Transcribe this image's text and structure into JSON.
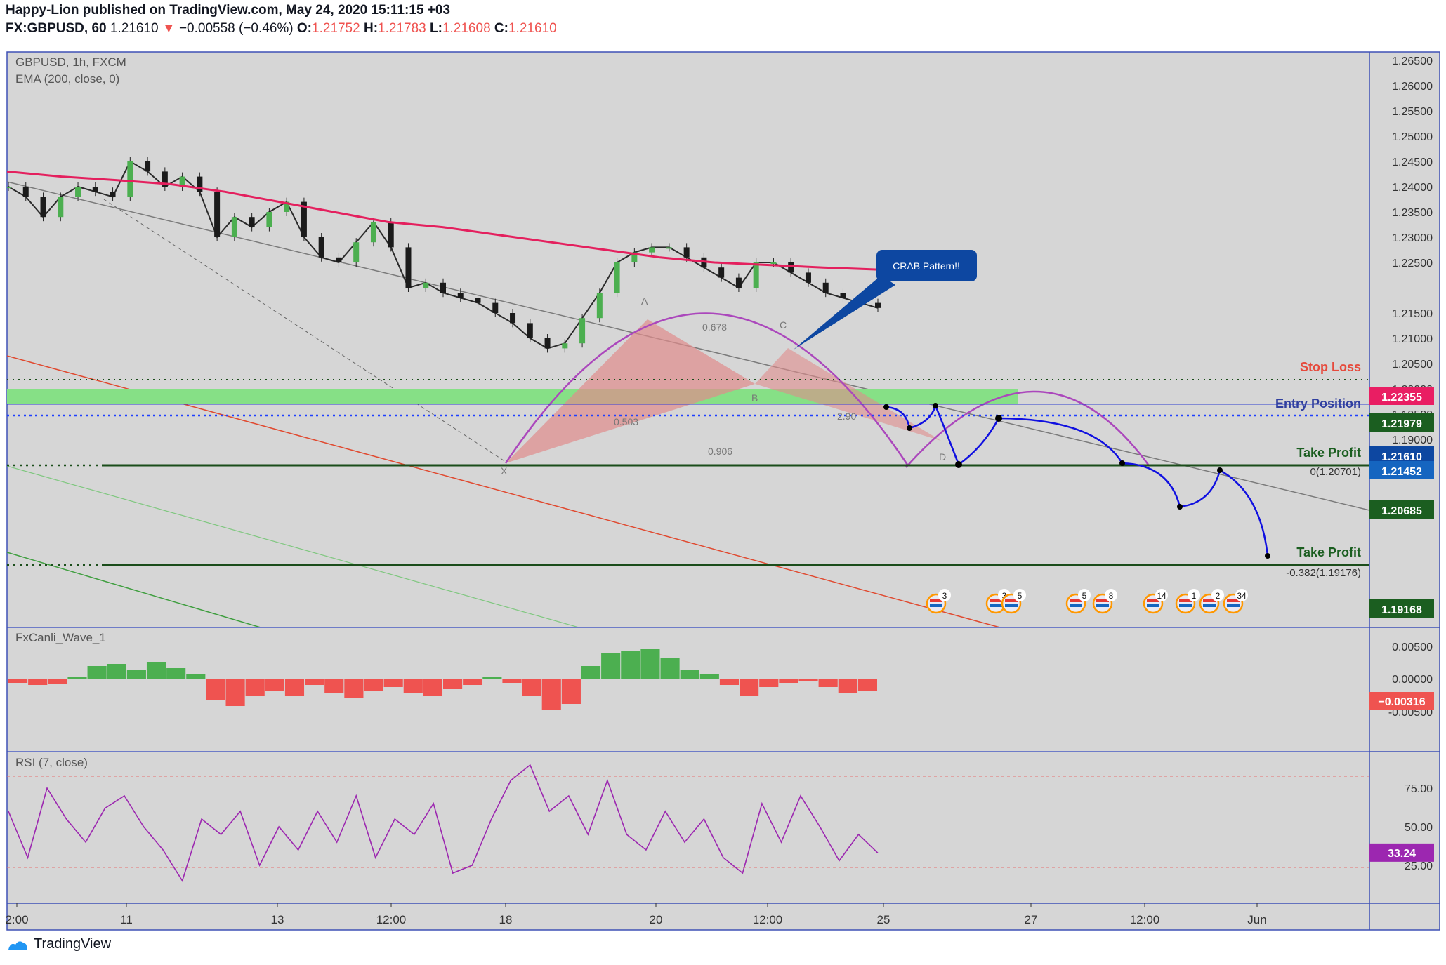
{
  "header": {
    "line1": "Happy-Lion published on TradingView.com, May 24, 2020 15:11:15 +03",
    "symbol": "FX:GBPUSD, 60",
    "last": "1.21610",
    "change": "−0.00558 (−0.46%)",
    "o_label": "O:",
    "o": "1.21752",
    "h_label": "H:",
    "h": "1.21783",
    "l_label": "L:",
    "l": "1.21608",
    "c_label": "C:",
    "c": "1.21610"
  },
  "legend": {
    "main": "GBPUSD, 1h, FXCM",
    "ema": "EMA (200, close, 0)",
    "wave": "FxCanli_Wave_1",
    "rsi": "RSI (7, close)"
  },
  "annotations": {
    "callout": "CRAB Pattern!!",
    "stop_loss": "Stop Loss",
    "entry": "Entry Position",
    "take_profit_1": "Take Profit",
    "take_profit_2": "Take Profit",
    "fib_0": "0(1.20701)",
    "fib_neg": "-0.382(1.19176)",
    "point_x": "X",
    "point_a": "A",
    "point_b": "B",
    "point_c": "C",
    "point_d": "D",
    "ratio_b": "0.503",
    "ratio_c": "0.678",
    "ratio_d": "2.90",
    "ratio_xd": "0.906"
  },
  "price_badges": [
    {
      "value": "1.22355",
      "color": "#e91e63"
    },
    {
      "value": "1.21979",
      "color": "#1b5e20"
    },
    {
      "value": "1.21610",
      "color": "#0d47a1"
    },
    {
      "value": "1.21452",
      "color": "#1565c0"
    },
    {
      "value": "1.20685",
      "color": "#1b5e20"
    },
    {
      "value": "1.19168",
      "color": "#1b5e20"
    }
  ],
  "wave_badge": {
    "value": "−0.00316",
    "color": "#ef5350"
  },
  "rsi_badge": {
    "value": "33.24",
    "color": "#9c27b0"
  },
  "event_counts": [
    "3",
    "3",
    "5",
    "5",
    "8",
    "14",
    "1",
    "2",
    "34"
  ],
  "footer": {
    "brand": "TradingView"
  },
  "chart_data": [
    {
      "type": "line",
      "title": "GBPUSD, 1h, FXCM",
      "x_ticks": [
        "2:00",
        "11",
        "13",
        "12:00",
        "18",
        "20",
        "12:00",
        "25",
        "27",
        "12:00",
        "Jun"
      ],
      "y_ticks": [
        "1.26500",
        "1.26000",
        "1.25500",
        "1.25000",
        "1.24500",
        "1.24000",
        "1.23500",
        "1.23000",
        "1.22500",
        "1.21500",
        "1.21000",
        "1.20500",
        "1.20000",
        "1.19500",
        "1.19000",
        "1.18500"
      ],
      "ylim": [
        1.1825,
        1.268
      ],
      "series": [
        {
          "name": "GBPUSD",
          "values": [
            1.24,
            1.238,
            1.234,
            1.238,
            1.24,
            1.239,
            1.238,
            1.245,
            1.243,
            1.24,
            1.242,
            1.239,
            1.23,
            1.234,
            1.232,
            1.235,
            1.237,
            1.23,
            1.226,
            1.225,
            1.229,
            1.233,
            1.228,
            1.22,
            1.221,
            1.219,
            1.218,
            1.217,
            1.215,
            1.213,
            1.21,
            1.208,
            1.209,
            1.214,
            1.219,
            1.225,
            1.227,
            1.228,
            1.228,
            1.226,
            1.224,
            1.222,
            1.22,
            1.225,
            1.225,
            1.223,
            1.221,
            1.219,
            1.218,
            1.217,
            1.216
          ]
        },
        {
          "name": "EMA (200, close, 0)",
          "values": [
            1.243,
            1.242,
            1.2413,
            1.2405,
            1.239,
            1.237,
            1.235,
            1.233,
            1.232,
            1.2305,
            1.229,
            1.2275,
            1.226,
            1.225,
            1.2245,
            1.224,
            1.2236
          ]
        }
      ]
    },
    {
      "type": "bar",
      "title": "FxCanli_Wave_1",
      "y_ticks": [
        "0.00500",
        "0.00000",
        "-0.00500"
      ],
      "ylim": [
        -0.009,
        0.0065
      ],
      "values": [
        -0.001,
        -0.0015,
        -0.0012,
        0.0005,
        0.003,
        0.0035,
        0.002,
        0.004,
        0.0025,
        0.001,
        -0.005,
        -0.0065,
        -0.004,
        -0.003,
        -0.004,
        -0.0015,
        -0.0035,
        -0.0045,
        -0.003,
        -0.002,
        -0.0035,
        -0.004,
        -0.0025,
        -0.0015,
        0.0005,
        -0.001,
        -0.004,
        -0.0075,
        -0.006,
        0.003,
        0.006,
        0.0065,
        0.007,
        0.005,
        0.002,
        0.001,
        -0.0015,
        -0.004,
        -0.002,
        -0.001,
        -0.0005,
        -0.002,
        -0.0035,
        -0.003
      ]
    },
    {
      "type": "line",
      "title": "RSI (7, close)",
      "y_ticks": [
        "75.00",
        "50.00",
        "25.00"
      ],
      "ylim": [
        0,
        95
      ],
      "levels": [
        80,
        20
      ],
      "values": [
        60,
        30,
        75,
        55,
        40,
        62,
        70,
        50,
        35,
        15,
        55,
        45,
        60,
        25,
        50,
        35,
        60,
        40,
        70,
        30,
        55,
        45,
        65,
        20,
        25,
        55,
        80,
        90,
        60,
        70,
        45,
        80,
        45,
        35,
        60,
        40,
        55,
        30,
        20,
        65,
        40,
        70,
        50,
        28,
        45,
        33
      ]
    }
  ]
}
